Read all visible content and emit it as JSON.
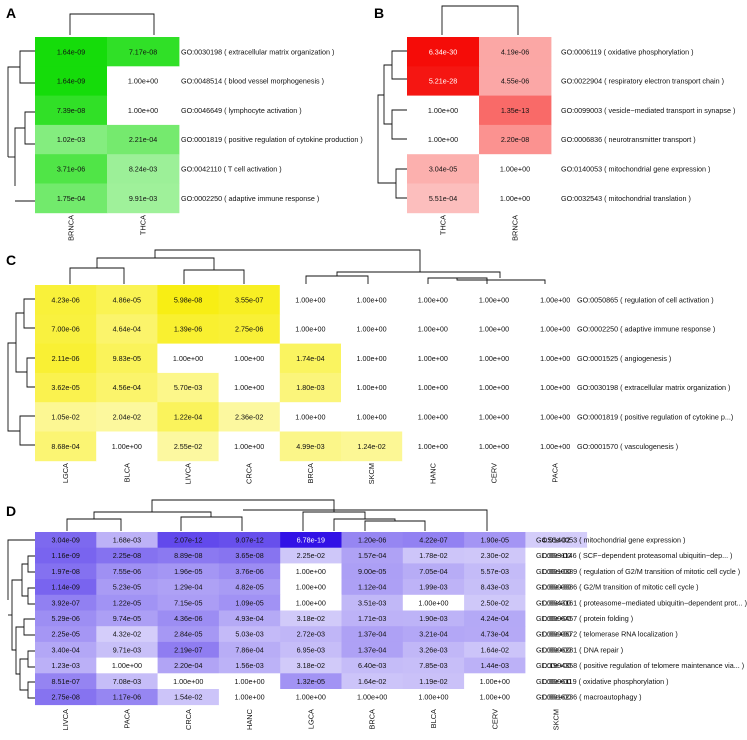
{
  "chart_data": [
    {
      "panel": "A",
      "type": "heatmap",
      "palette": "green",
      "columns": [
        "BRNCA",
        "THCA"
      ],
      "rows": [
        "GO:0030198 ( extracellular matrix organization )",
        "GO:0048514 ( blood vessel morphogenesis )",
        "GO:0046649 ( lymphocyte activation )",
        "GO:0001819 ( positive regulation of cytokine production )",
        "GO:0042110 ( T cell activation )",
        "GO:0002250 ( adaptive immune response )"
      ],
      "values": [
        [
          "1.64e-09",
          "7.17e-08"
        ],
        [
          "1.64e-09",
          "1.00e+00"
        ],
        [
          "7.39e-08",
          "1.00e+00"
        ],
        [
          "1.02e-03",
          "2.21e-04"
        ],
        [
          "3.71e-06",
          "8.24e-03"
        ],
        [
          "1.75e-04",
          "9.91e-03"
        ]
      ]
    },
    {
      "panel": "B",
      "type": "heatmap",
      "palette": "red",
      "columns": [
        "THCA",
        "BRNCA"
      ],
      "rows": [
        "GO:0006119 ( oxidative phosphorylation )",
        "GO:0022904 ( respiratory electron transport chain )",
        "GO:0099003 ( vesicle−mediated transport in synapse )",
        "GO:0006836 ( neurotransmitter transport )",
        "GO:0140053 ( mitochondrial gene expression )",
        "GO:0032543 ( mitochondrial translation )"
      ],
      "values": [
        [
          "6.34e-30",
          "4.19e-06"
        ],
        [
          "5.21e-28",
          "4.55e-06"
        ],
        [
          "1.00e+00",
          "1.35e-13"
        ],
        [
          "1.00e+00",
          "2.20e-08"
        ],
        [
          "3.04e-05",
          "1.00e+00"
        ],
        [
          "5.51e-04",
          "1.00e+00"
        ]
      ]
    },
    {
      "panel": "C",
      "type": "heatmap",
      "palette": "yellow",
      "columns": [
        "LGCA",
        "BLCA",
        "LIVCA",
        "CRCA",
        "BRCA",
        "SKCM",
        "HANC",
        "CERV",
        "PACA"
      ],
      "rows": [
        "GO:0050865 ( regulation of cell activation )",
        "GO:0002250 ( adaptive immune response )",
        "GO:0001525 ( angiogenesis )",
        "GO:0030198 ( extracellular matrix organization )",
        "GO:0001819 ( positive regulation of cytokine p...)",
        "GO:0001570 ( vasculogenesis )"
      ],
      "values": [
        [
          "4.23e-06",
          "4.86e-05",
          "5.98e-08",
          "3.55e-07",
          "1.00e+00",
          "1.00e+00",
          "1.00e+00",
          "1.00e+00",
          "1.00e+00"
        ],
        [
          "7.00e-06",
          "4.64e-04",
          "1.39e-06",
          "2.75e-06",
          "1.00e+00",
          "1.00e+00",
          "1.00e+00",
          "1.00e+00",
          "1.00e+00"
        ],
        [
          "2.11e-06",
          "9.83e-05",
          "1.00e+00",
          "1.00e+00",
          "1.74e-04",
          "1.00e+00",
          "1.00e+00",
          "1.00e+00",
          "1.00e+00"
        ],
        [
          "3.62e-05",
          "4.56e-04",
          "5.70e-03",
          "1.00e+00",
          "1.80e-03",
          "1.00e+00",
          "1.00e+00",
          "1.00e+00",
          "1.00e+00"
        ],
        [
          "1.05e-02",
          "2.04e-02",
          "1.22e-04",
          "2.36e-02",
          "1.00e+00",
          "1.00e+00",
          "1.00e+00",
          "1.00e+00",
          "1.00e+00"
        ],
        [
          "8.68e-04",
          "1.00e+00",
          "2.55e-02",
          "1.00e+00",
          "4.99e-03",
          "1.24e-02",
          "1.00e+00",
          "1.00e+00",
          "1.00e+00"
        ]
      ]
    },
    {
      "panel": "D",
      "type": "heatmap",
      "palette": "purple",
      "columns": [
        "LIVCA",
        "PACA",
        "CRCA",
        "HANC",
        "LGCA",
        "BRCA",
        "BLCA",
        "CERV",
        "SKCM"
      ],
      "rows": [
        "GO:0140053 ( mitochondrial gene expression )",
        "GO:0031146 ( SCF−dependent proteasomal ubiquitin−dep... )",
        "GO:0010389 ( regulation of G2/M transition of mitotic cell cycle )",
        "GO:0000086 ( G2/M transition of mitotic cell cycle )",
        "GO:0043161 ( proteasome−mediated ubiquitin−dependent prot... )",
        "GO:0006457 ( protein folding )",
        "GO:0090672 ( telomerase RNA localization )",
        "GO:0006281 ( DNA repair )",
        "GO:1904358 ( positive regulation of telomere maintenance via... )",
        "GO:0006119 ( oxidative phosphorylation )",
        "GO:0016236 ( macroautophagy )"
      ],
      "values": [
        [
          "3.04e-09",
          "1.68e-03",
          "2.07e-12",
          "9.07e-12",
          "6.78e-19",
          "1.20e-06",
          "4.22e-07",
          "1.90e-05",
          "4.56e-02"
        ],
        [
          "1.16e-09",
          "2.25e-08",
          "8.89e-08",
          "3.65e-08",
          "2.25e-02",
          "1.57e-04",
          "1.78e-02",
          "2.30e-02",
          "1.00e+00"
        ],
        [
          "1.97e-08",
          "7.55e-06",
          "1.96e-05",
          "3.76e-06",
          "1.00e+00",
          "9.00e-05",
          "7.05e-04",
          "5.57e-03",
          "1.00e+00"
        ],
        [
          "1.14e-09",
          "5.23e-05",
          "1.29e-04",
          "4.82e-05",
          "1.00e+00",
          "1.12e-04",
          "1.99e-03",
          "8.43e-03",
          "1.00e+00"
        ],
        [
          "3.92e-07",
          "1.22e-05",
          "7.15e-05",
          "1.09e-05",
          "1.00e+00",
          "3.51e-03",
          "1.00e+00",
          "2.50e-02",
          "1.00e+00"
        ],
        [
          "5.29e-06",
          "9.74e-05",
          "4.36e-06",
          "4.93e-04",
          "3.18e-02",
          "1.71e-03",
          "1.90e-03",
          "4.24e-04",
          "1.00e+00"
        ],
        [
          "2.25e-05",
          "4.32e-02",
          "2.84e-05",
          "5.03e-03",
          "2.72e-03",
          "1.37e-04",
          "3.21e-04",
          "4.73e-04",
          "1.00e+00"
        ],
        [
          "3.40e-04",
          "9.71e-03",
          "2.19e-07",
          "7.86e-04",
          "6.95e-03",
          "1.37e-04",
          "3.26e-03",
          "1.64e-02",
          "1.00e+00"
        ],
        [
          "1.23e-03",
          "1.00e+00",
          "2.20e-04",
          "1.56e-03",
          "3.18e-02",
          "6.40e-03",
          "7.85e-03",
          "1.44e-03",
          "1.00e+00"
        ],
        [
          "8.51e-07",
          "7.08e-03",
          "1.00e+00",
          "1.00e+00",
          "1.32e-05",
          "1.64e-02",
          "1.19e-02",
          "1.00e+00",
          "1.00e+00"
        ],
        [
          "2.75e-08",
          "1.17e-06",
          "1.54e-02",
          "1.00e+00",
          "1.00e+00",
          "1.00e+00",
          "1.00e+00",
          "1.00e+00",
          "1.00e+00"
        ]
      ]
    }
  ]
}
